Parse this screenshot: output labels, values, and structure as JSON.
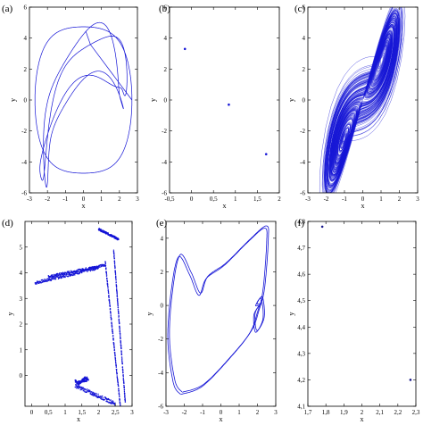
{
  "chart_data": [
    {
      "panel": "(a)",
      "type": "line",
      "xlabel": "x",
      "ylabel": "y",
      "xlim": [
        -3,
        3
      ],
      "ylim": [
        -6,
        6
      ],
      "xticks": [
        "-3",
        "-2",
        "-1",
        "0",
        "1",
        "2",
        "3"
      ],
      "yticks": [
        "-6",
        "-4",
        "-2",
        "0",
        "2",
        "4",
        "6"
      ],
      "description": "closed periodic orbit (limit cycle) in the x-y plane",
      "color": "#1515d6"
    },
    {
      "panel": "(b)",
      "type": "scatter",
      "xlabel": "x",
      "ylabel": "y",
      "xlim": [
        -0.5,
        2
      ],
      "ylim": [
        -6,
        6
      ],
      "xticks": [
        "-0,5",
        "0",
        "0,5",
        "1",
        "1,5",
        "2"
      ],
      "yticks": [
        "-6",
        "-4",
        "-2",
        "0",
        "2",
        "4",
        "6"
      ],
      "points": [
        {
          "x": -0.15,
          "y": 3.3
        },
        {
          "x": 0.85,
          "y": -0.3
        },
        {
          "x": 1.7,
          "y": -3.5
        }
      ],
      "color": "#1515d6"
    },
    {
      "panel": "(c)",
      "type": "line",
      "xlabel": "x",
      "ylabel": "y",
      "xlim": [
        -3,
        3
      ],
      "ylim": [
        -6,
        6
      ],
      "xticks": [
        "-3",
        "-2",
        "-1",
        "0",
        "1",
        "2",
        "3"
      ],
      "yticks": [
        "-6",
        "-4",
        "-2",
        "0",
        "2",
        "4",
        "6"
      ],
      "description": "dense chaotic attractor in the x-y plane",
      "color": "#1515d6"
    },
    {
      "panel": "(d)",
      "type": "scatter",
      "xlabel": "x",
      "ylabel": "y",
      "xlim": [
        -0.2,
        3
      ],
      "ylim": [
        -1.2,
        6
      ],
      "xticks": [
        "0",
        "0,5",
        "1",
        "1,5",
        "2",
        "2,5",
        "3"
      ],
      "yticks": [
        "0",
        "1",
        "2",
        "3",
        "4",
        "5"
      ],
      "description": "Poincaré-section points forming a folded band",
      "color": "#1515d6"
    },
    {
      "panel": "(e)",
      "type": "line",
      "xlabel": "x",
      "ylabel": "y",
      "xlim": [
        -3,
        3
      ],
      "ylim": [
        -6,
        5
      ],
      "xticks": [
        "-3",
        "-2",
        "-1",
        "0",
        "1",
        "2",
        "3"
      ],
      "yticks": [
        "-6",
        "-4",
        "-2",
        "0",
        "2",
        "4"
      ],
      "description": "closed periodic orbit with a loop near x≈2",
      "color": "#1515d6"
    },
    {
      "panel": "(f)",
      "type": "scatter",
      "xlabel": "x",
      "ylabel": "y",
      "xlim": [
        1.7,
        2.3
      ],
      "ylim": [
        4.1,
        4.8
      ],
      "xticks": [
        "1,7",
        "1,8",
        "1,9",
        "2",
        "2,1",
        "2,2",
        "2,3"
      ],
      "yticks": [
        "4,1",
        "4,2",
        "4,3",
        "4,4",
        "4,5",
        "4,6",
        "4,7",
        "4,8"
      ],
      "points": [
        {
          "x": 1.78,
          "y": 4.78
        },
        {
          "x": 2.27,
          "y": 4.2
        }
      ],
      "color": "#15158a"
    }
  ]
}
